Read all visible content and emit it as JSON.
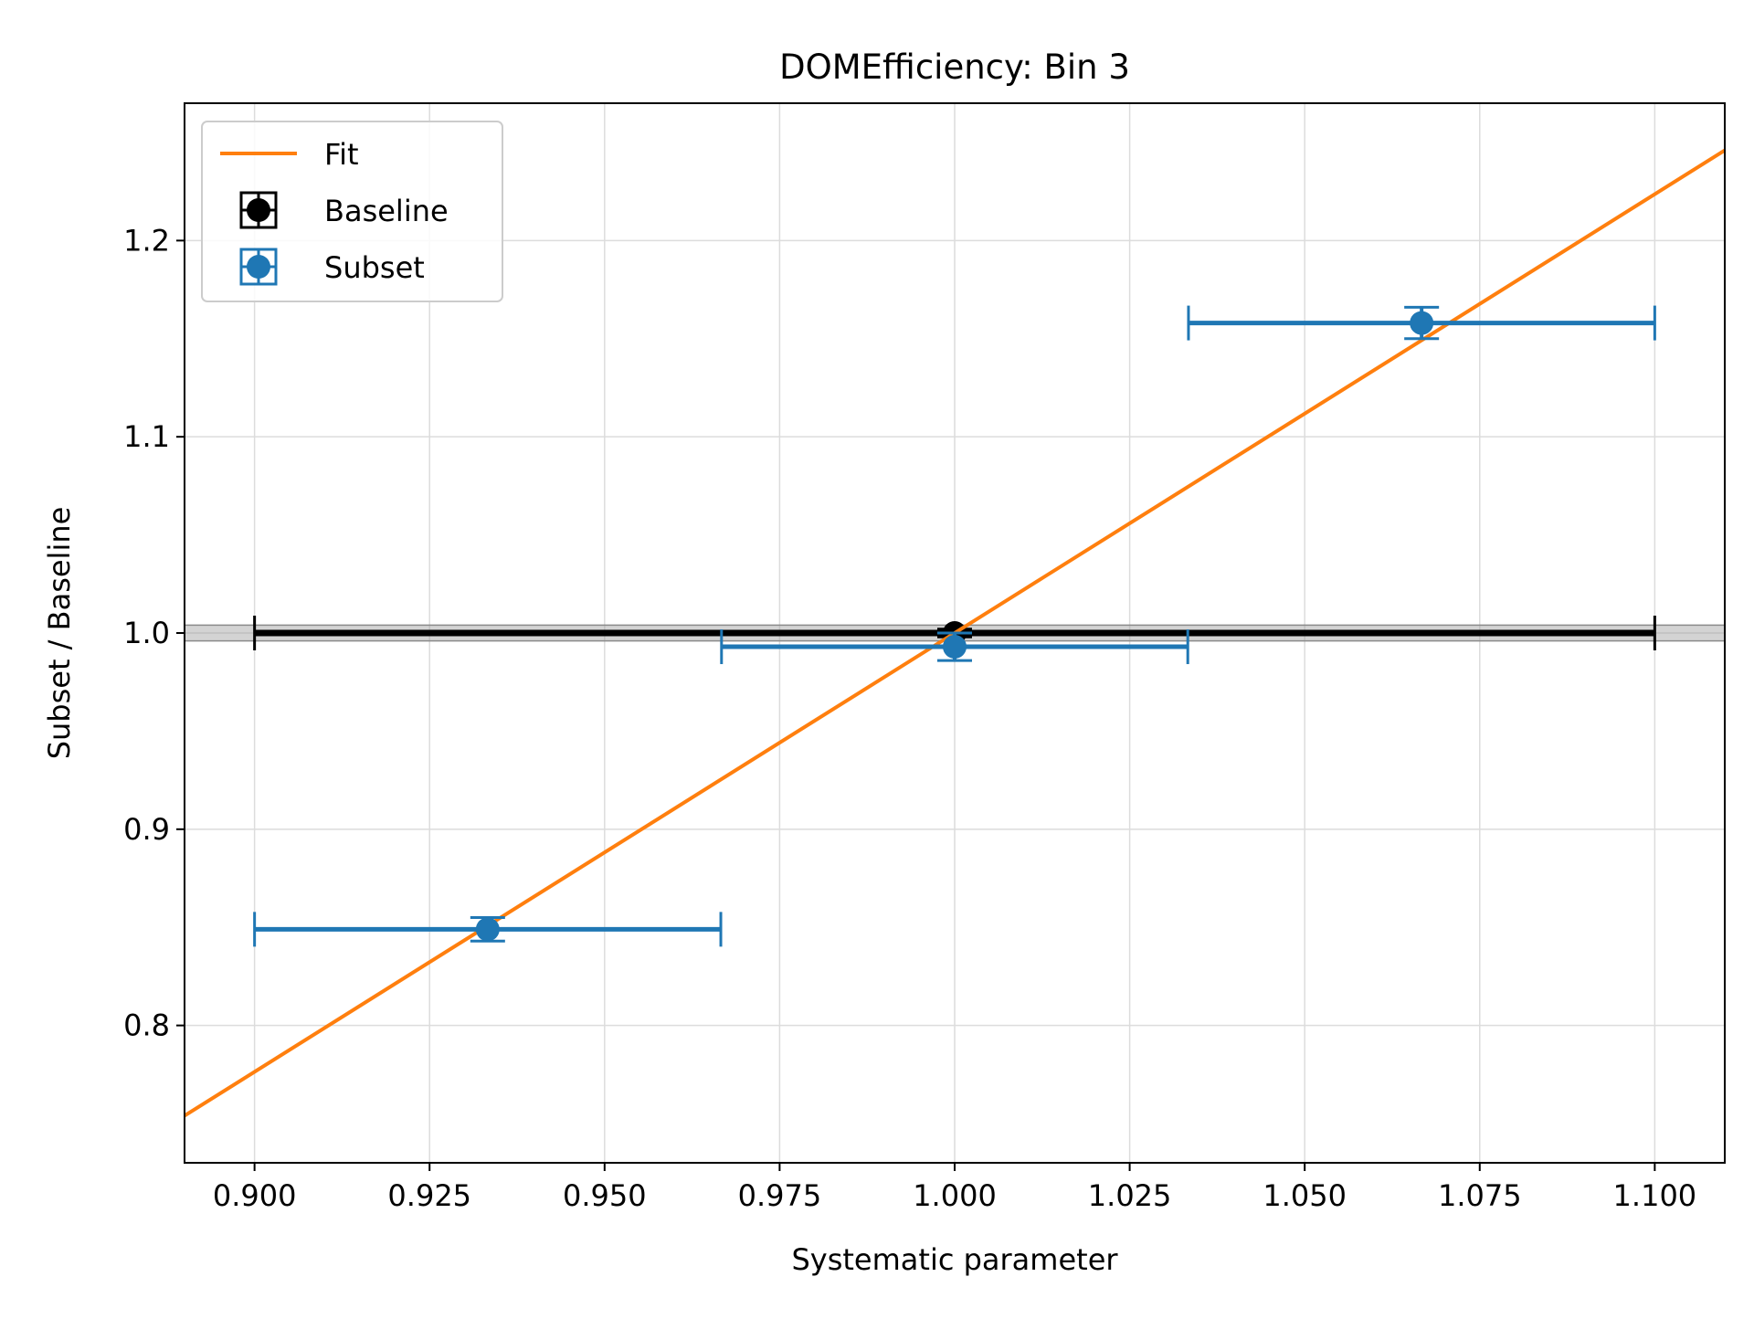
{
  "chart_data": {
    "type": "scatter",
    "title": "DOMEfficiency: Bin 3",
    "xlabel": "Systematic parameter",
    "ylabel": "Subset / Baseline",
    "xlim": [
      0.89,
      1.11
    ],
    "ylim": [
      0.73,
      1.27
    ],
    "xticks": [
      0.9,
      0.925,
      0.95,
      0.975,
      1.0,
      1.025,
      1.05,
      1.075,
      1.1
    ],
    "xtick_labels": [
      "0.900",
      "0.925",
      "0.950",
      "0.975",
      "1.000",
      "1.025",
      "1.050",
      "1.075",
      "1.100"
    ],
    "yticks": [
      0.8,
      0.9,
      1.0,
      1.1,
      1.2
    ],
    "ytick_labels": [
      "0.8",
      "0.9",
      "1.0",
      "1.1",
      "1.2"
    ],
    "grid": true,
    "legend_position": "top-left",
    "series": [
      {
        "name": "Fit",
        "kind": "line",
        "color": "#ff7f0e",
        "points": [
          [
            0.89,
            0.754
          ],
          [
            1.11,
            1.246
          ]
        ]
      },
      {
        "name": "Baseline",
        "kind": "errorbar",
        "color": "#000000",
        "points": [
          {
            "x": 1.0,
            "y": 1.0,
            "xerr": 0.1,
            "yerr": 0.002
          }
        ],
        "band": {
          "y": 1.0,
          "half_width": 0.004,
          "color": "#9e9e9e"
        }
      },
      {
        "name": "Subset",
        "kind": "errorbar",
        "color": "#1f77b4",
        "points": [
          {
            "x": 0.9333,
            "y": 0.849,
            "xerr": 0.0333,
            "yerr": 0.006
          },
          {
            "x": 1.0,
            "y": 0.993,
            "xerr": 0.0333,
            "yerr": 0.007
          },
          {
            "x": 1.0667,
            "y": 1.158,
            "xerr": 0.0333,
            "yerr": 0.008
          }
        ]
      }
    ]
  }
}
